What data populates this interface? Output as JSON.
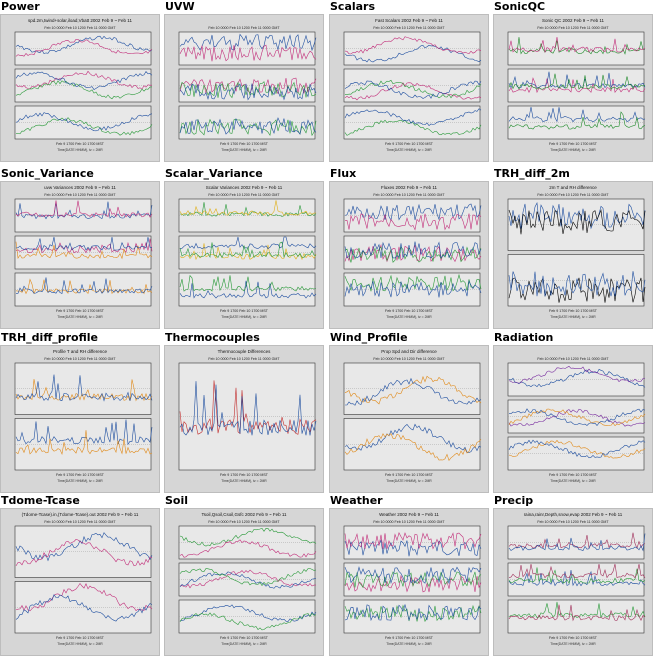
{
  "thumbnails": [
    {
      "title": "Power",
      "heading": "spd.2m,twind+solar,iload,Vbatt 2002 Feb 9 ~ Feb 11",
      "panels": 3,
      "kind": "wave",
      "colors": [
        "#1f4fa0",
        "#c22f7a",
        "#2a9a3a"
      ]
    },
    {
      "title": "UVW",
      "heading": "",
      "panels": 3,
      "kind": "noise",
      "colors": [
        "#1f4fa0",
        "#c22f7a",
        "#2a9a3a"
      ]
    },
    {
      "title": "Scalars",
      "heading": "Fast Scalars 2002 Feb 9 ~ Feb 11",
      "panels": 3,
      "kind": "wave",
      "colors": [
        "#1f4fa0",
        "#c22f7a",
        "#2a9a3a"
      ]
    },
    {
      "title": "SonicQC",
      "heading": "Sonic QC 2002 Feb 9 ~ Feb 11",
      "panels": 3,
      "kind": "spikes",
      "colors": [
        "#1f8a2a",
        "#c22f7a",
        "#1f4fa0"
      ]
    },
    {
      "title": "Sonic_Variance",
      "heading": "uvw Variances 2002 Feb 9 ~ Feb 11",
      "panels": 3,
      "kind": "spikes",
      "colors": [
        "#1f4fa0",
        "#c22f7a",
        "#e08a1a"
      ]
    },
    {
      "title": "Scalar_Variance",
      "heading": "Scalar Variances 2002 Feb 9 ~ Feb 11",
      "panels": 3,
      "kind": "spikes",
      "colors": [
        "#2a9a3a",
        "#e0b01a",
        "#1f4fa0"
      ]
    },
    {
      "title": "Flux",
      "heading": "Fluxes 2002 Feb 9 ~ Feb 11",
      "panels": 3,
      "kind": "noise",
      "colors": [
        "#1f4fa0",
        "#c22f7a",
        "#2a9a3a"
      ]
    },
    {
      "title": "TRH_diff_2m",
      "heading": "2m T and RH difference",
      "panels": 2,
      "kind": "noise",
      "colors": [
        "#1f4fa0",
        "#000000"
      ]
    },
    {
      "title": "TRH_diff_profile",
      "heading": "Profile T and RH difference",
      "panels": 2,
      "kind": "spikes",
      "colors": [
        "#e08a1a",
        "#1f4fa0"
      ]
    },
    {
      "title": "Thermocouples",
      "heading": "Thermocouple Differences",
      "panels": 1,
      "kind": "spikes",
      "colors": [
        "#c22f2f",
        "#1f4fa0",
        "#000000"
      ]
    },
    {
      "title": "Wind_Profile",
      "heading": "Prop Spd and Dir difference",
      "panels": 2,
      "kind": "wave",
      "colors": [
        "#e08a1a",
        "#1f4fa0"
      ]
    },
    {
      "title": "Radiation",
      "heading": "",
      "panels": 3,
      "kind": "wave",
      "colors": [
        "#1f4fa0",
        "#7a2fa0",
        "#e08a1a"
      ]
    },
    {
      "title": "Tdome-Tcase",
      "heading": "(Tdome-Tcase).in,(Tdome-Tcase).out 2002 Feb 9 ~ Feb 11",
      "panels": 2,
      "kind": "wave",
      "colors": [
        "#1f4fa0",
        "#c22f7a"
      ]
    },
    {
      "title": "Soil",
      "heading": "Tsoil,Qsoil,Csoil,Gsfc 2002 Feb 9 ~ Feb 11",
      "panels": 3,
      "kind": "wave",
      "colors": [
        "#2a9a3a",
        "#c22f7a",
        "#1f4fa0"
      ]
    },
    {
      "title": "Weather",
      "heading": "Weather 2002 Feb 9 ~ Feb 11",
      "panels": 3,
      "kind": "noise",
      "colors": [
        "#1f4fa0",
        "#c22f7a",
        "#2a9a3a"
      ]
    },
    {
      "title": "Precip",
      "heading": "raina,rainr,Depth,snow,evap 2002 Feb 9 ~ Feb 11",
      "panels": 3,
      "kind": "spikes",
      "colors": [
        "#a02f5a",
        "#1f4fa0",
        "#2a9a3a"
      ]
    }
  ],
  "axis_labels": {
    "top": "Feb 10 0000   Feb 10 1200   Feb 11 0000 GMT",
    "bottom": "Feb 9 1700   Feb 10 1700 MST",
    "footer": "Time(DATE HHMM), tz = 2MR"
  }
}
